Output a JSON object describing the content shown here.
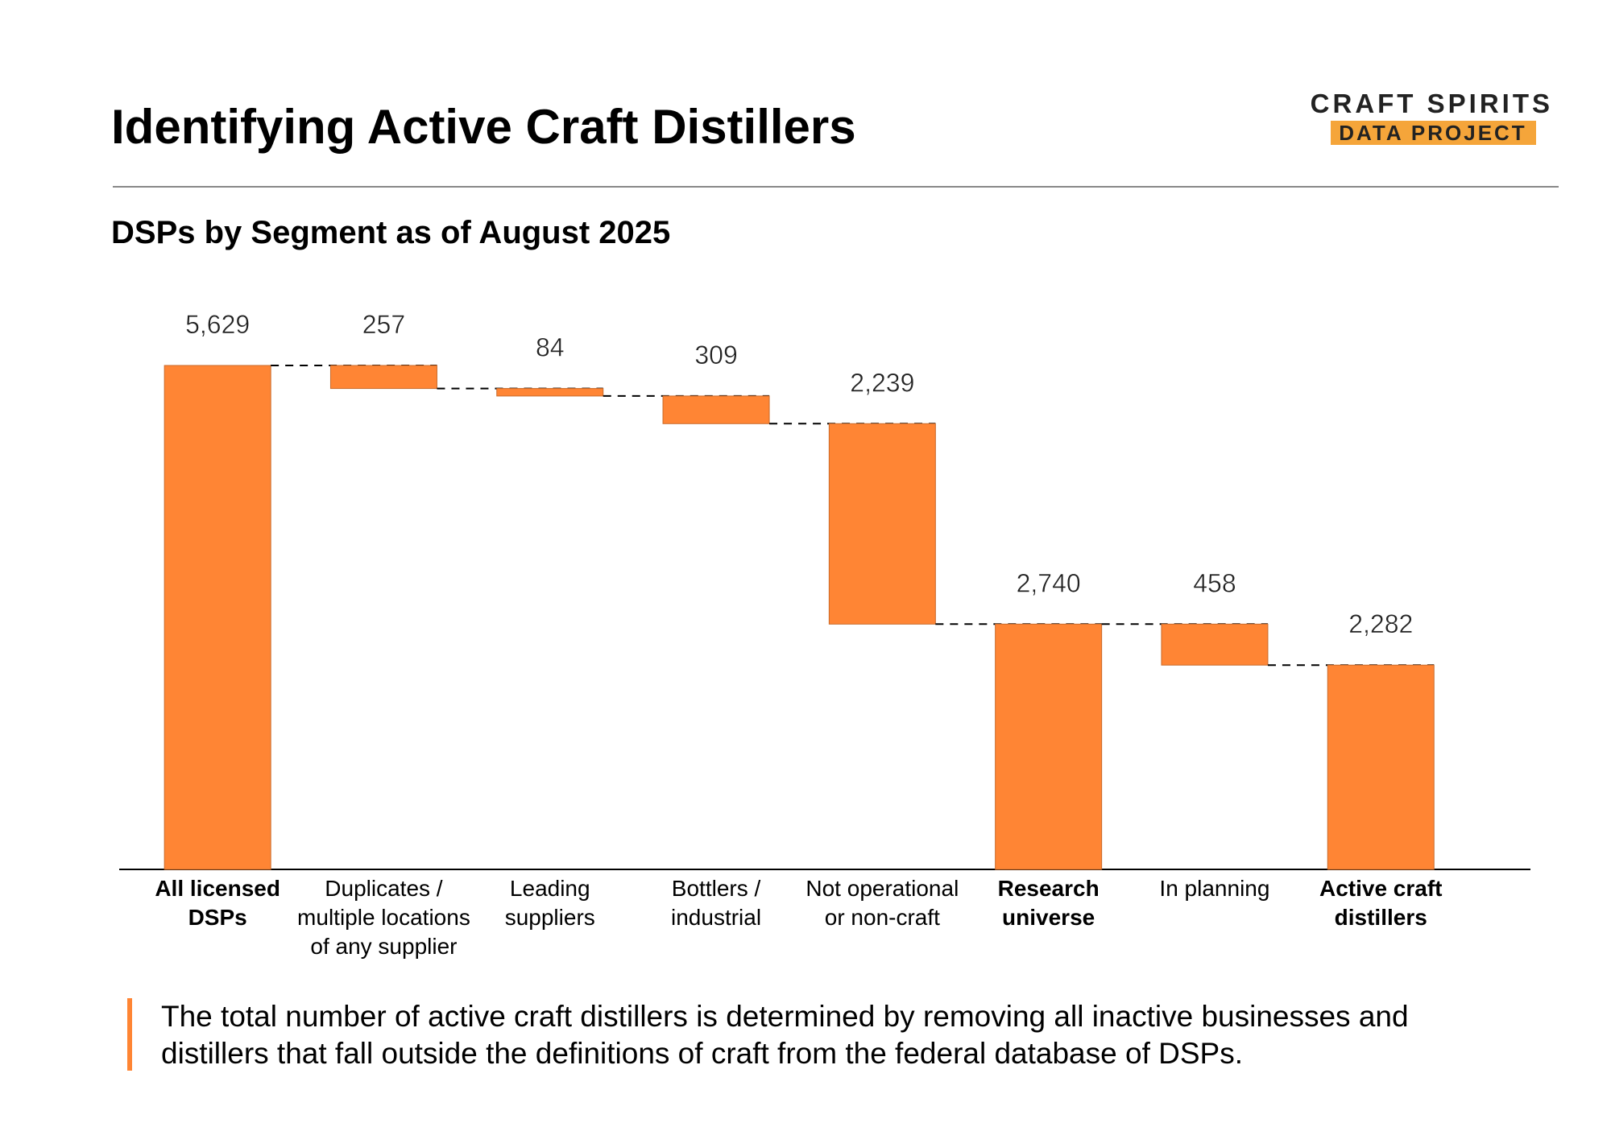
{
  "header": {
    "title": "Identifying Active Craft Distillers",
    "logo_top": "CRAFT SPIRITS",
    "logo_bottom": "DATA PROJECT"
  },
  "chart_data": {
    "type": "waterfall",
    "title": "DSPs by Segment as of August 2025",
    "categories": [
      "All licensed\nDSPs",
      "Duplicates /\nmultiple locations\nof any  supplier",
      "Leading\nsuppliers",
      "Bottlers /\nindustrial",
      "Not operational\nor non-craft",
      "Research\nuniverse",
      "In planning",
      "Active craft\ndistillers"
    ],
    "values": [
      5629,
      257,
      84,
      309,
      2239,
      2740,
      458,
      2282
    ],
    "value_labels": [
      "5,629",
      "257",
      "84",
      "309",
      "2,239",
      "2,740",
      "458",
      "2,282"
    ],
    "bar_kinds": [
      "total",
      "decrease",
      "decrease",
      "decrease",
      "decrease",
      "total",
      "decrease",
      "total"
    ],
    "color": "#ff8534",
    "ylim": [
      0,
      5629
    ]
  },
  "footnote": "The total number of active craft distillers is determined by removing all inactive businesses and\ndistillers that fall outside the definitions of craft  from the federal database of DSPs."
}
